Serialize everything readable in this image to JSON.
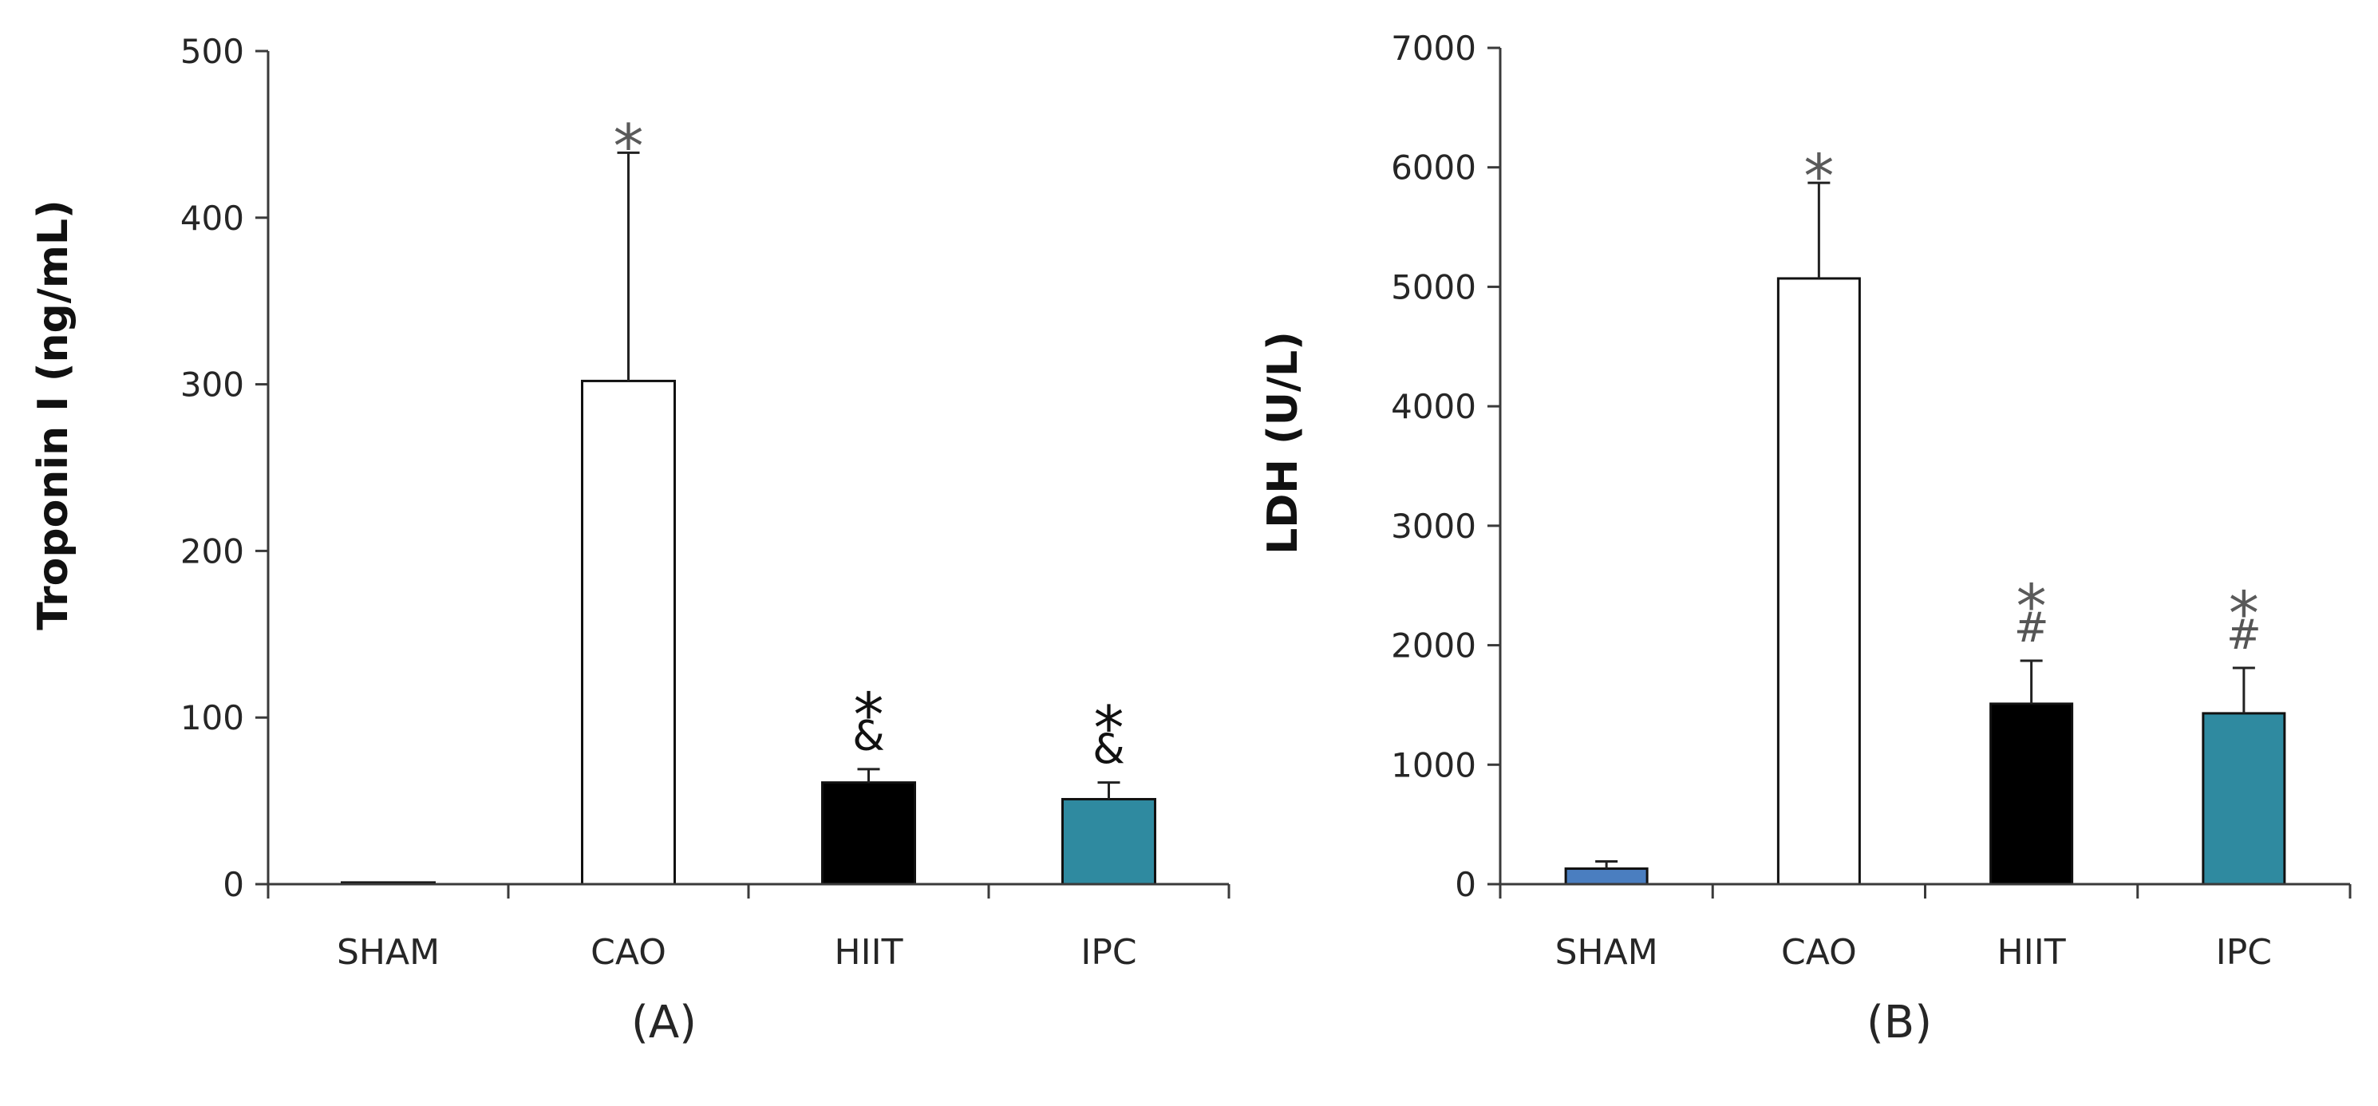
{
  "chart_data": [
    {
      "type": "bar",
      "panel_label": "(A)",
      "title": "",
      "xlabel": "",
      "ylabel": "Troponin I (ng/mL)",
      "categories": [
        "SHAM",
        "CAO",
        "HIIT",
        "IPC"
      ],
      "values": [
        1,
        302,
        61,
        51
      ],
      "error_plus": [
        0,
        137,
        8,
        10
      ],
      "bar_colors": [
        "#1a1a1a",
        "#ffffff",
        "#000000",
        "#2f8aa0"
      ],
      "annotations": [
        {
          "category": "CAO",
          "symbols": [
            "*"
          ],
          "color": "#5a5a5a"
        },
        {
          "category": "HIIT",
          "symbols": [
            "*",
            "&"
          ],
          "color": "#111111"
        },
        {
          "category": "IPC",
          "symbols": [
            "*",
            "&"
          ],
          "color": "#111111"
        }
      ],
      "ylim": [
        0,
        500
      ],
      "yticks": [
        0,
        100,
        200,
        300,
        400,
        500
      ],
      "ytick_labels": [
        "0",
        "100",
        "200",
        "300",
        "400",
        "500"
      ],
      "grid": false,
      "legend": "none"
    },
    {
      "type": "bar",
      "panel_label": "(B)",
      "title": "",
      "xlabel": "",
      "ylabel": "LDH (U/L)",
      "categories": [
        "SHAM",
        "CAO",
        "HIIT",
        "IPC"
      ],
      "values": [
        130,
        5070,
        1510,
        1430
      ],
      "error_plus": [
        60,
        800,
        360,
        380
      ],
      "bar_colors": [
        "#4a7ec0",
        "#ffffff",
        "#000000",
        "#2f8aa0"
      ],
      "annotations": [
        {
          "category": "CAO",
          "symbols": [
            "*"
          ],
          "color": "#5a5a5a"
        },
        {
          "category": "HIIT",
          "symbols": [
            "*",
            "#"
          ],
          "color": "#5a5a5a"
        },
        {
          "category": "IPC",
          "symbols": [
            "*",
            "#"
          ],
          "color": "#5a5a5a"
        }
      ],
      "ylim": [
        0,
        7000
      ],
      "yticks": [
        0,
        1000,
        2000,
        3000,
        4000,
        5000,
        6000,
        7000
      ],
      "ytick_labels": [
        "0",
        "1000",
        "2000",
        "3000",
        "4000",
        "5000",
        "6000",
        "7000"
      ],
      "grid": false,
      "legend": "none"
    }
  ]
}
